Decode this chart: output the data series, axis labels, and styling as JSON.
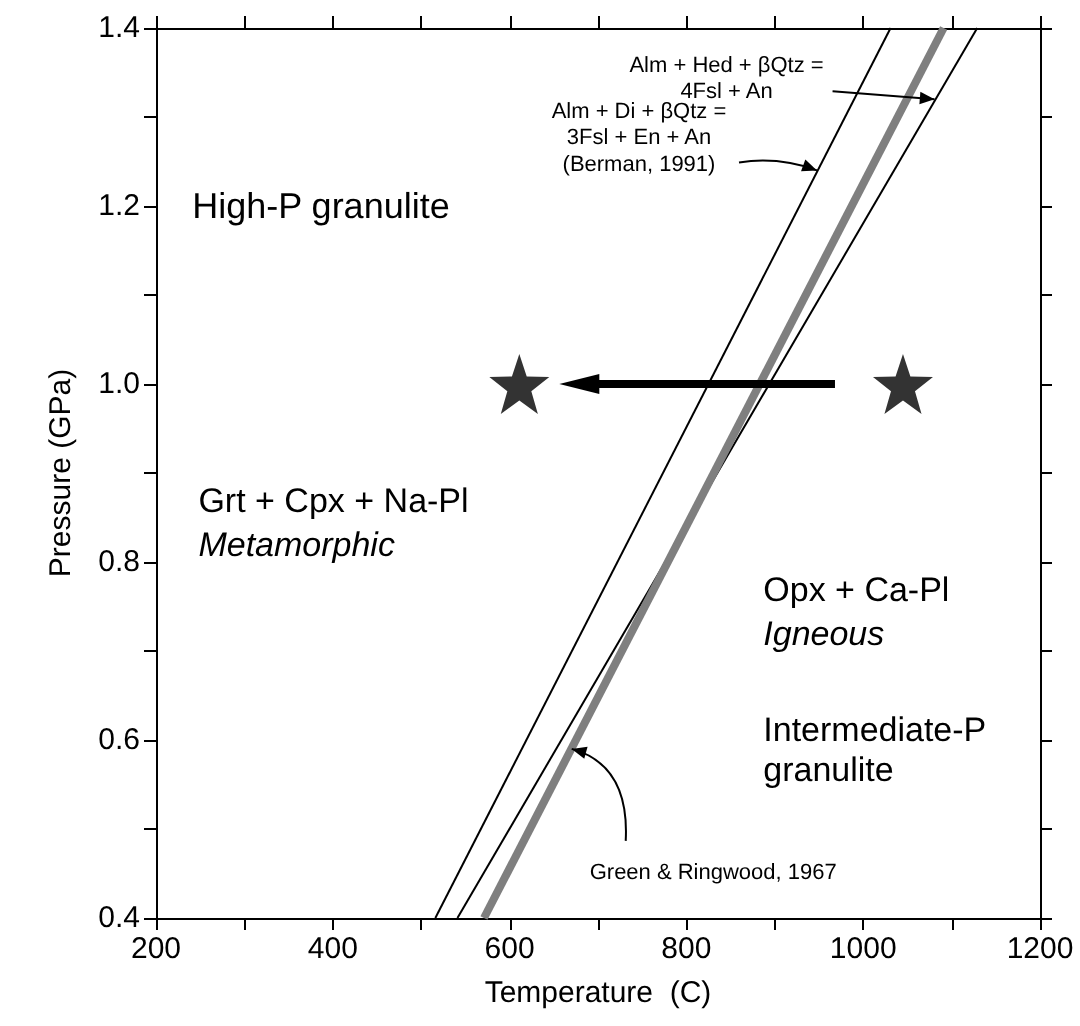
{
  "chart_data": {
    "type": "line",
    "xlabel": "Temperature  (C)",
    "ylabel": "Pressure (GPa)",
    "xlim": [
      200,
      1200
    ],
    "xticks": [
      200,
      {
        "value": 300,
        "label": null
      },
      400,
      {
        "value": 500,
        "label": null
      },
      600,
      {
        "value": 700,
        "label": null
      },
      800,
      {
        "value": 900,
        "label": null
      },
      1000,
      {
        "value": 1100,
        "label": null
      },
      1200
    ],
    "ylim": [
      0.4,
      1.4
    ],
    "yticks": [
      0.4,
      {
        "value": 0.5,
        "label": null
      },
      0.6,
      {
        "value": 0.7,
        "label": null
      },
      0.8,
      {
        "value": 0.9,
        "label": null
      },
      {
        "value": 1,
        "label": "1.0"
      },
      {
        "value": 1.1,
        "label": null
      },
      1.2,
      {
        "value": 1.3,
        "label": null
      },
      1.4
    ],
    "grid": false,
    "series": [
      {
        "color": "#000000",
        "marker": "none",
        "x": [
          516,
          1031
        ],
        "values": [
          0.4,
          1.4
        ]
      },
      {
        "color": "#000000",
        "marker": "none",
        "x": [
          541,
          1129
        ],
        "values": [
          0.4,
          1.4
        ]
      },
      {
        "color": "#7f7f7f",
        "marker": "none",
        "x": [
          571,
          1091
        ],
        "values": [
          0.4,
          1.4
        ]
      },
      {
        "type": "scatter",
        "color": "#000000",
        "marker": "star",
        "x": [
          611,
          1045
        ],
        "values": [
          1,
          1
        ]
      }
    ],
    "annotations": [
      "High-P granulite",
      "Grt + Cpx + Na-Pl",
      "Metamorphic",
      "Opx + Ca-Pl",
      "Igneous",
      "Intermediate-P\ngranulite",
      {
        "text": "Alm + Hed + βQtz =\n4Fsl + An",
        "x": 1083,
        "y": 1.32
      },
      {
        "text": "Alm + Di + βQtz =\n3Fsl + En + An\n(Berman, 1991)",
        "x": 950,
        "y": 1.24
      },
      {
        "text": "Green & Ringwood, 1967",
        "x": 668,
        "y": 0.59
      }
    ]
  }
}
